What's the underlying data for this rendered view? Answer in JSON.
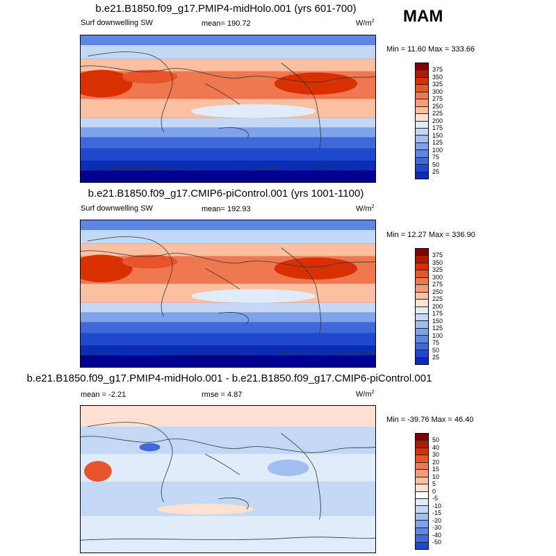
{
  "season": "MAM",
  "panels": [
    {
      "title": "b.e21.B1850.f09_g17.PMIP4-midHolo.001 (yrs 601-700)",
      "left_label": "Surf downwelling SW",
      "mean_text": "mean= 190.72",
      "units": "W/m",
      "units_sup": "2",
      "minmax": "Min =  11.60 Max = 333.66",
      "colorbar_labels": [
        "375",
        "350",
        "325",
        "300",
        "275",
        "250",
        "225",
        "200",
        "175",
        "150",
        "125",
        "100",
        "75",
        "50",
        "25"
      ],
      "colors": [
        "#800000",
        "#b01a00",
        "#d83000",
        "#e8552a",
        "#f07850",
        "#f59c78",
        "#fac0a0",
        "#fde0d0",
        "#e0ecfa",
        "#c2d8f5",
        "#a0bff0",
        "#7fa3ea",
        "#5f86e2",
        "#3f69d9",
        "#1f48cc",
        "#0a2db8",
        "#000090"
      ]
    },
    {
      "title": "b.e21.B1850.f09_g17.CMIP6-piControl.001 (yrs 1001-1100)",
      "left_label": "Surf downwelling SW",
      "mean_text": "mean= 192.93",
      "units": "W/m",
      "units_sup": "2",
      "minmax": "Min =  12.27 Max = 336.90",
      "colorbar_labels": [
        "375",
        "350",
        "325",
        "300",
        "275",
        "250",
        "225",
        "200",
        "175",
        "150",
        "125",
        "100",
        "75",
        "50",
        "25"
      ],
      "colors": [
        "#800000",
        "#b01a00",
        "#d83000",
        "#e8552a",
        "#f07850",
        "#f59c78",
        "#fac0a0",
        "#fde0d0",
        "#e0ecfa",
        "#c2d8f5",
        "#a0bff0",
        "#7fa3ea",
        "#5f86e2",
        "#3f69d9",
        "#1f48cc",
        "#0a2db8",
        "#000090"
      ]
    },
    {
      "title": "b.e21.B1850.f09_g17.PMIP4-midHolo.001 - b.e21.B1850.f09_g17.CMIP6-piControl.001",
      "left_label": "mean =  -2.21",
      "mean_text": "rmse =  4.87",
      "units": "W/m",
      "units_sup": "2",
      "minmax": "Min = -39.76 Max =  46.40",
      "colorbar_labels": [
        "50",
        "40",
        "30",
        "20",
        "15",
        "10",
        "5",
        "0",
        "-5",
        "-10",
        "-15",
        "-20",
        "-30",
        "-40",
        "-50"
      ],
      "colors": [
        "#800000",
        "#b01a00",
        "#d83000",
        "#e8552a",
        "#f07850",
        "#f59c78",
        "#fac0a0",
        "#fde0d0",
        "#ffffff",
        "#e0ecfa",
        "#c2d8f5",
        "#a0bff0",
        "#7fa3ea",
        "#5f86e2",
        "#3f69d9",
        "#1f48cc",
        "#000090"
      ]
    }
  ]
}
